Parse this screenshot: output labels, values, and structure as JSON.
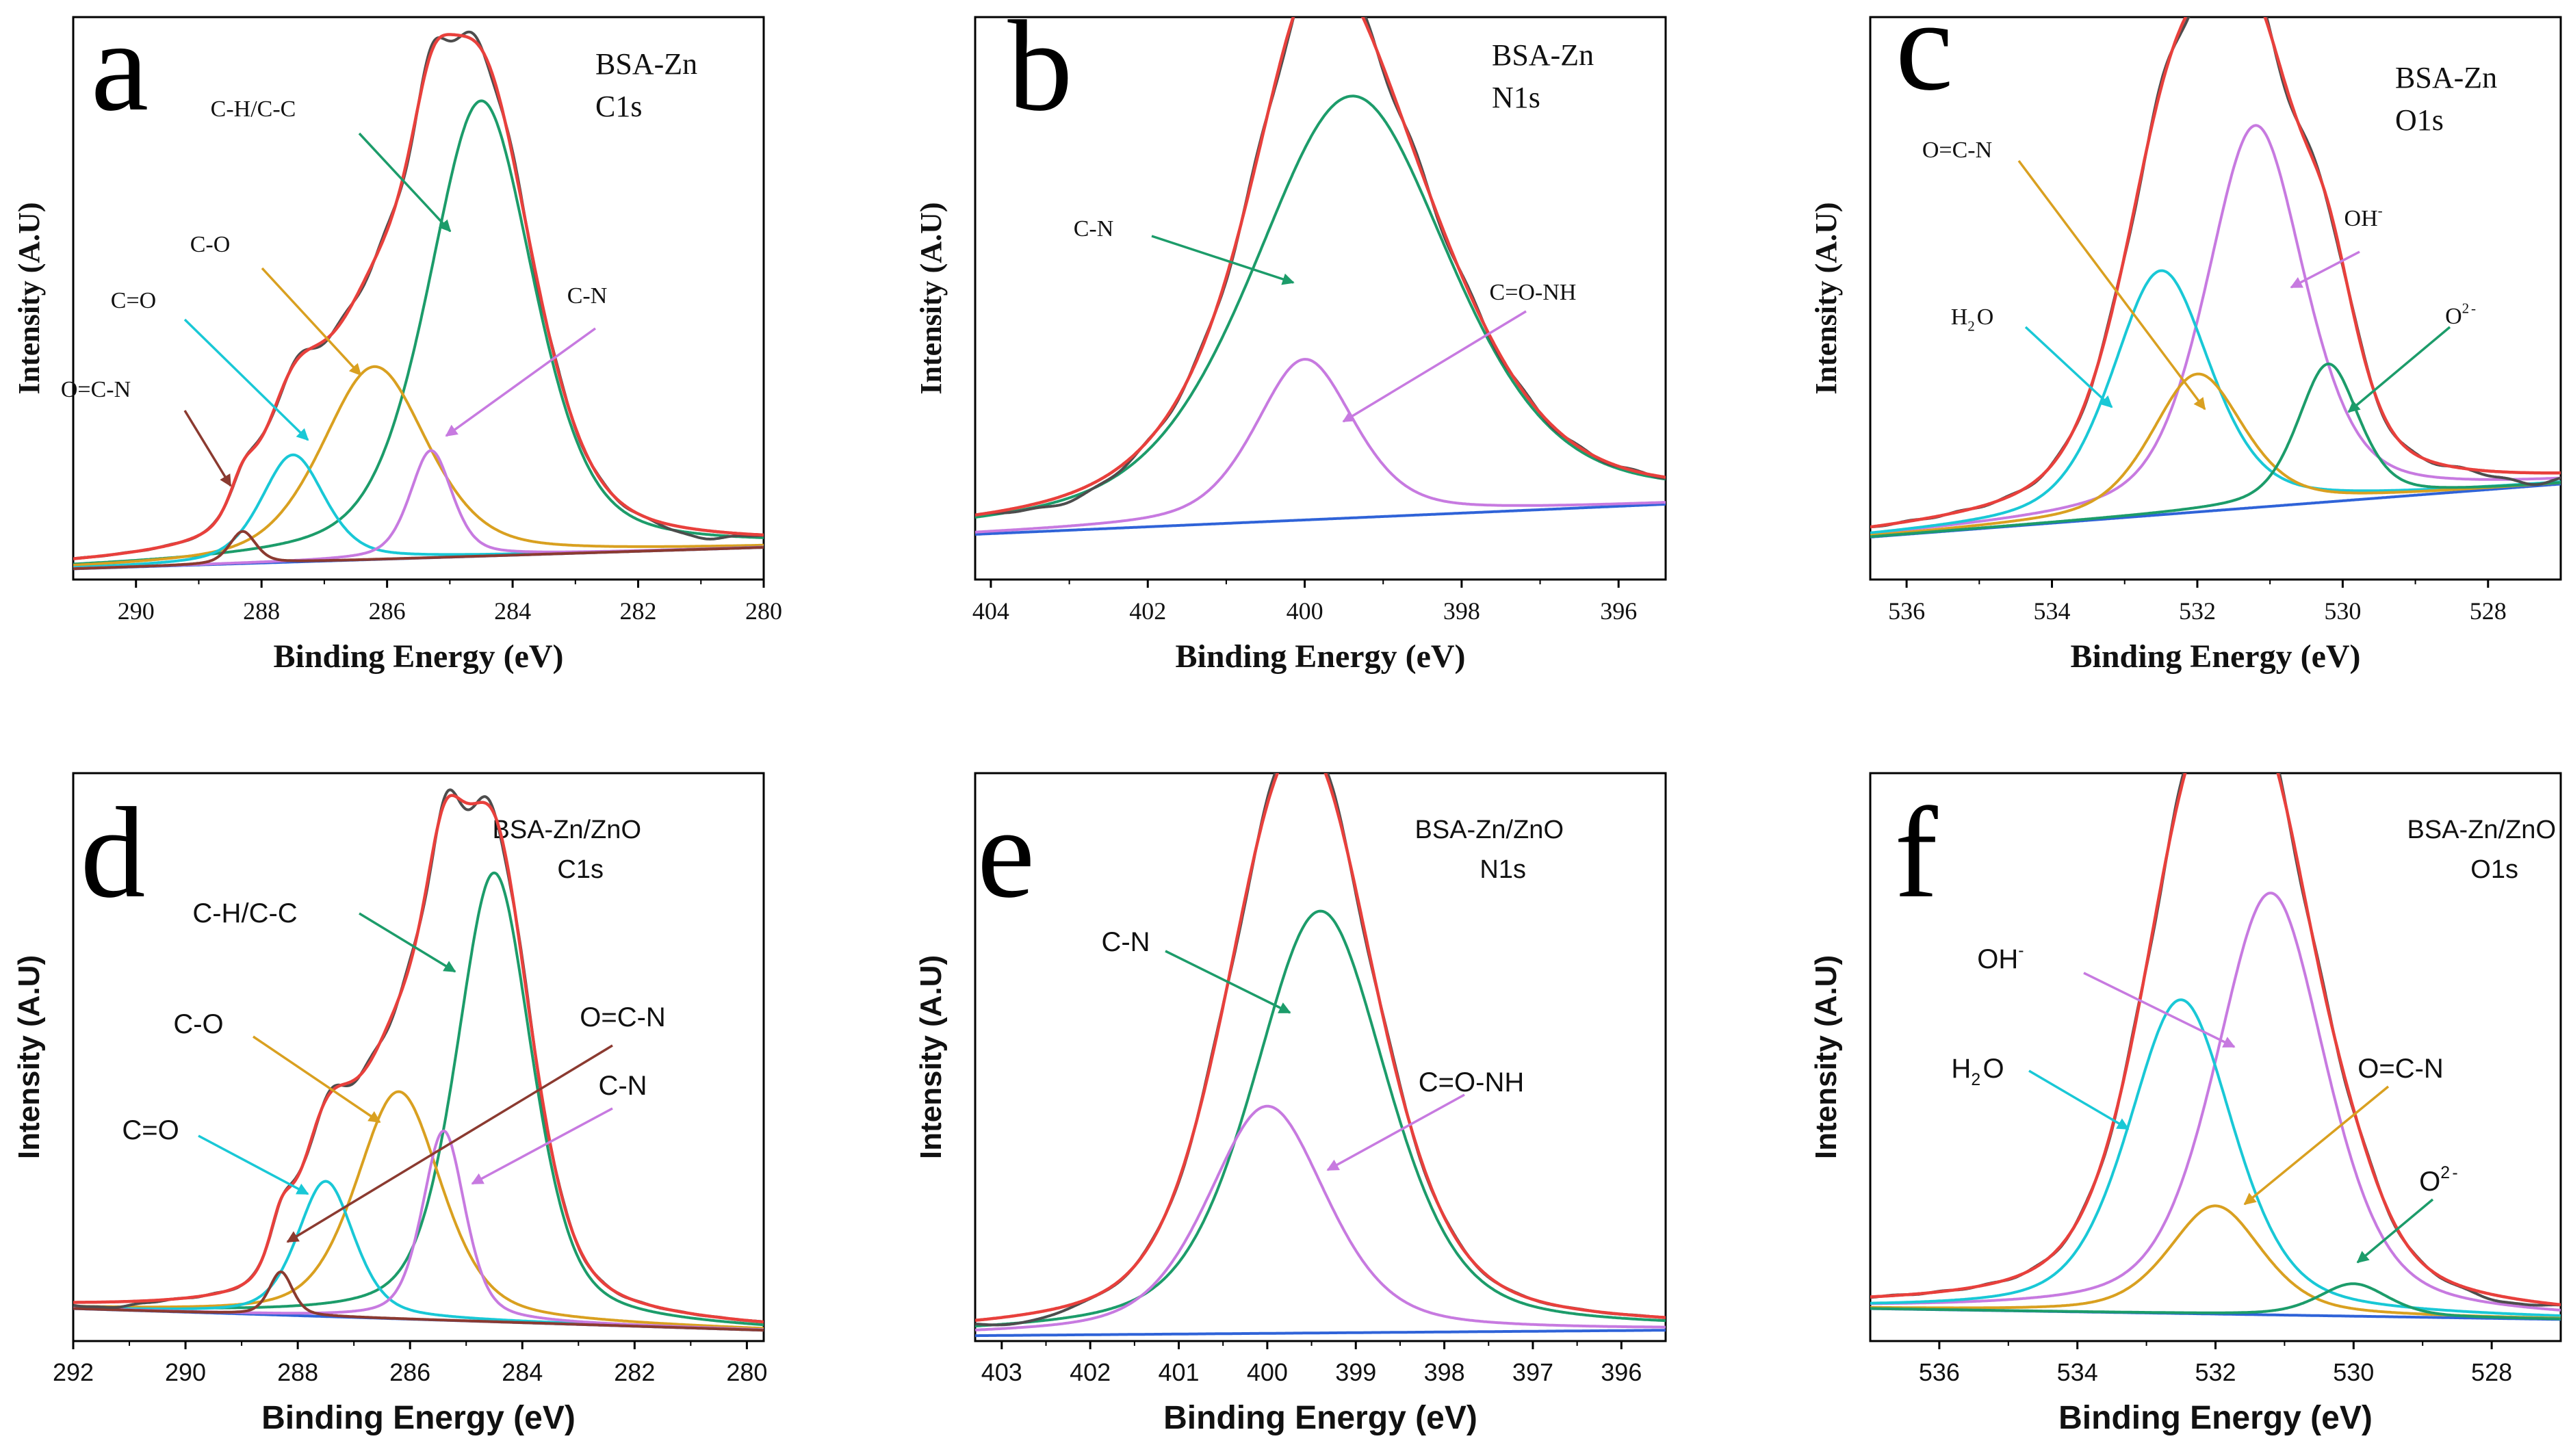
{
  "figure": {
    "panels": [
      "a",
      "b",
      "c",
      "d",
      "e",
      "f"
    ]
  },
  "colors": {
    "envelope": "#e8403c",
    "raw": "#4d4d4d",
    "background": "#2f63d8",
    "green": "#1c9c6a",
    "cyan": "#19c8d6",
    "orange": "#d9a020",
    "violet": "#c77ae0",
    "brown": "#8b3a30",
    "axis": "#000000"
  },
  "chart_data": [
    {
      "id": "a",
      "type": "line",
      "panel_letter": "a",
      "title": "BSA-Zn\nC1s",
      "xlabel": "Binding Energy (eV)",
      "ylabel": "Intensity (A.U)",
      "xlim": [
        291,
        280
      ],
      "ylim": [
        0,
        1.05
      ],
      "xticks": [
        "290",
        "288",
        "286",
        "284",
        "282",
        "280"
      ],
      "background": {
        "from": 0.02,
        "to": 0.06
      },
      "raw_dip": {
        "center": 281,
        "depth": 0.015,
        "width": 0.4
      },
      "series": [
        {
          "name": "C-H/C-C",
          "color_key": "green",
          "center": 284.5,
          "height": 0.85,
          "fwhm": 2.0
        },
        {
          "name": "C-O",
          "color_key": "orange",
          "center": 286.2,
          "height": 0.36,
          "fwhm": 2.0
        },
        {
          "name": "C=O",
          "color_key": "cyan",
          "center": 287.5,
          "height": 0.2,
          "fwhm": 1.2
        },
        {
          "name": "C-N",
          "color_key": "violet",
          "center": 285.3,
          "height": 0.2,
          "fwhm": 0.8
        },
        {
          "name": "O=C-N",
          "color_key": "brown",
          "center": 288.3,
          "height": 0.06,
          "fwhm": 0.5
        }
      ],
      "annotations": [
        {
          "label": "C-H/C-C",
          "target": "C-H/C-C"
        },
        {
          "label": "C-O",
          "target": "C-O"
        },
        {
          "label": "C=O",
          "target": "C=O"
        },
        {
          "label": "C-N",
          "target": "C-N"
        },
        {
          "label": "O=C-N",
          "target": "O=C-N"
        }
      ]
    },
    {
      "id": "b",
      "type": "line",
      "panel_letter": "b",
      "title": "BSA-Zn\nN1s",
      "xlabel": "Binding Energy (eV)",
      "ylabel": "Intensity (A.U)",
      "xlim": [
        404.2,
        395.4
      ],
      "ylim": [
        0,
        1.12
      ],
      "xticks": [
        "404",
        "402",
        "400",
        "398",
        "396"
      ],
      "background": {
        "from": 0.09,
        "to": 0.15
      },
      "raw_dip": {
        "center": 403.0,
        "depth": 0.015,
        "width": 0.5
      },
      "series": [
        {
          "name": "C-N",
          "color_key": "green",
          "center": 399.4,
          "height": 0.84,
          "fwhm": 3.0
        },
        {
          "name": "C=O-NH",
          "color_key": "violet",
          "center": 400.0,
          "height": 0.32,
          "fwhm": 1.5
        }
      ],
      "annotations": [
        {
          "label": "C-N",
          "target": "C-N"
        },
        {
          "label": "C=O-NH",
          "target": "C=O-NH"
        }
      ]
    },
    {
      "id": "c",
      "type": "line",
      "panel_letter": "c",
      "title": "BSA-Zn\nO1s",
      "xlabel": "Binding Energy (eV)",
      "ylabel": "Intensity (A.U)",
      "xlim": [
        536.5,
        527.0
      ],
      "ylim": [
        0,
        1.06
      ],
      "xticks": [
        "536",
        "534",
        "532",
        "530",
        "528"
      ],
      "background": {
        "from": 0.08,
        "to": 0.18
      },
      "raw_dip": {
        "center": 527.4,
        "depth": 0.02,
        "width": 0.4
      },
      "series": [
        {
          "name": "OH⁻",
          "color_key": "violet",
          "center": 531.2,
          "height": 0.72,
          "fwhm": 1.6
        },
        {
          "name": "H₂O",
          "color_key": "cyan",
          "center": 532.5,
          "height": 0.46,
          "fwhm": 1.6
        },
        {
          "name": "O=C-N",
          "color_key": "orange",
          "center": 532.0,
          "height": 0.26,
          "fwhm": 1.5
        },
        {
          "name": "O²⁻",
          "color_key": "green",
          "center": 530.2,
          "height": 0.26,
          "fwhm": 1.0
        }
      ],
      "annotations": [
        {
          "label": "O=C-N",
          "target": "O=C-N"
        },
        {
          "label": "OH⁻",
          "target": "OH⁻"
        },
        {
          "label": "H₂O",
          "target": "H₂O"
        },
        {
          "label": "O²⁻",
          "target": "O²⁻"
        }
      ]
    },
    {
      "id": "d",
      "type": "line",
      "panel_letter": "d",
      "title": "BSA-Zn/ZnO\nC1s",
      "xlabel": "Binding Energy (eV)",
      "ylabel": "Intensity (A.U)",
      "xlim": [
        292,
        279.7
      ],
      "ylim": [
        0,
        1.05
      ],
      "xticks": [
        "292",
        "290",
        "288",
        "286",
        "284",
        "282",
        "280"
      ],
      "background": {
        "from": 0.06,
        "to": 0.02
      },
      "raw_dip": {
        "center": 291.4,
        "depth": 0.01,
        "width": 0.5
      },
      "series": [
        {
          "name": "C-H/C-C",
          "color_key": "green",
          "center": 284.5,
          "height": 0.83,
          "fwhm": 1.6
        },
        {
          "name": "C-O",
          "color_key": "orange",
          "center": 286.2,
          "height": 0.42,
          "fwhm": 1.8
        },
        {
          "name": "C=O",
          "color_key": "cyan",
          "center": 287.5,
          "height": 0.25,
          "fwhm": 1.2
        },
        {
          "name": "C-N",
          "color_key": "violet",
          "center": 285.4,
          "height": 0.35,
          "fwhm": 0.9
        },
        {
          "name": "O=C-N",
          "color_key": "brown",
          "center": 288.3,
          "height": 0.08,
          "fwhm": 0.5
        }
      ],
      "annotations": [
        {
          "label": "C-H/C-C",
          "target": "C-H/C-C"
        },
        {
          "label": "C-O",
          "target": "C-O"
        },
        {
          "label": "C=O",
          "target": "C=O"
        },
        {
          "label": "O=C-N",
          "target": "O=C-N"
        },
        {
          "label": "C-N",
          "target": "C-N"
        }
      ]
    },
    {
      "id": "e",
      "type": "line",
      "panel_letter": "e",
      "title": "BSA-Zn/ZnO\nN1s",
      "xlabel": "Binding Energy (eV)",
      "ylabel": "Intensity (A.U)",
      "xlim": [
        403.3,
        395.5
      ],
      "ylim": [
        0,
        1.05
      ],
      "xticks": [
        "403",
        "402",
        "401",
        "400",
        "399",
        "398",
        "397",
        "396"
      ],
      "background": {
        "from": 0.01,
        "to": 0.02
      },
      "raw_dip": {
        "center": 402.8,
        "depth": 0.015,
        "width": 0.4
      },
      "series": [
        {
          "name": "C-N",
          "color_key": "green",
          "center": 399.4,
          "height": 0.78,
          "fwhm": 1.8
        },
        {
          "name": "C=O-NH",
          "color_key": "violet",
          "center": 400.0,
          "height": 0.42,
          "fwhm": 1.6
        }
      ],
      "annotations": [
        {
          "label": "C-N",
          "target": "C-N"
        },
        {
          "label": "C=O-NH",
          "target": "C=O-NH"
        }
      ]
    },
    {
      "id": "f",
      "type": "line",
      "panel_letter": "f",
      "title": "BSA-Zn/ZnO\nO1s",
      "xlabel": "Binding Energy (eV)",
      "ylabel": "Intensity (A.U)",
      "xlim": [
        537,
        527
      ],
      "ylim": [
        0,
        1.05
      ],
      "xticks": [
        "536",
        "534",
        "532",
        "530",
        "528"
      ],
      "background": {
        "from": 0.06,
        "to": 0.04
      },
      "raw_dip": {
        "center": 527.8,
        "depth": 0.01,
        "width": 0.4
      },
      "series": [
        {
          "name": "OH⁻",
          "color_key": "violet",
          "center": 531.2,
          "height": 0.78,
          "fwhm": 1.9
        },
        {
          "name": "H₂O",
          "color_key": "cyan",
          "center": 532.5,
          "height": 0.58,
          "fwhm": 1.8
        },
        {
          "name": "O=C-N",
          "color_key": "orange",
          "center": 532.0,
          "height": 0.2,
          "fwhm": 1.6
        },
        {
          "name": "O²⁻",
          "color_key": "green",
          "center": 530.0,
          "height": 0.06,
          "fwhm": 1.2
        }
      ],
      "annotations": [
        {
          "label": "OH⁻",
          "target": "OH⁻"
        },
        {
          "label": "H₂O",
          "target": "H₂O"
        },
        {
          "label": "O=C-N",
          "target": "O=C-N"
        },
        {
          "label": "O²⁻",
          "target": "O²⁻"
        }
      ]
    }
  ]
}
